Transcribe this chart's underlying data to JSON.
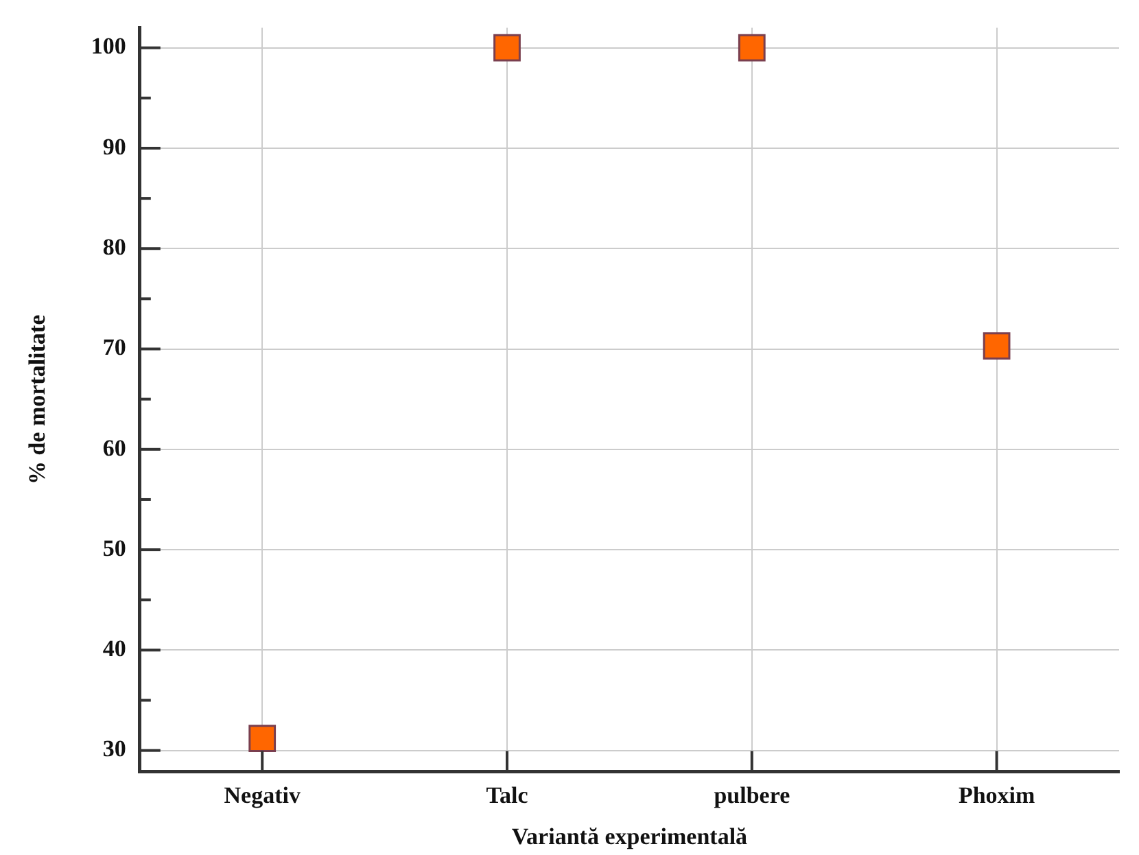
{
  "chart_data": {
    "type": "scatter",
    "xlabel": "Variantă experimentală",
    "ylabel": "% de mortalitate",
    "categories": [
      "Negativ",
      "Talc",
      "pulbere",
      "Phoxim"
    ],
    "series": [
      {
        "color": "#ff6600",
        "values": [
          31.2,
          100,
          100,
          70.3
        ]
      }
    ],
    "ylim": [
      27.9,
      102
    ],
    "yticks": [
      30,
      {
        "value": 35,
        "label": null
      },
      40,
      {
        "value": 45,
        "label": null
      },
      50,
      {
        "value": 55,
        "label": null
      },
      60,
      {
        "value": 65,
        "label": null
      },
      70,
      {
        "value": 75,
        "label": null
      },
      80,
      {
        "value": 85,
        "label": null
      },
      90,
      {
        "value": 95,
        "label": null
      },
      100
    ],
    "grid": true,
    "legend": false,
    "marker": "square"
  }
}
